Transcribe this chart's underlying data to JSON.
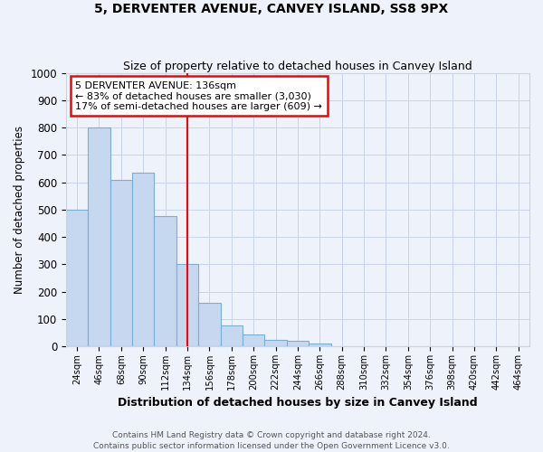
{
  "title": "5, DERVENTER AVENUE, CANVEY ISLAND, SS8 9PX",
  "subtitle": "Size of property relative to detached houses in Canvey Island",
  "xlabel": "Distribution of detached houses by size in Canvey Island",
  "ylabel": "Number of detached properties",
  "footer_line1": "Contains HM Land Registry data © Crown copyright and database right 2024.",
  "footer_line2": "Contains public sector information licensed under the Open Government Licence v3.0.",
  "bin_labels": [
    "24sqm",
    "46sqm",
    "68sqm",
    "90sqm",
    "112sqm",
    "134sqm",
    "156sqm",
    "178sqm",
    "200sqm",
    "222sqm",
    "244sqm",
    "266sqm",
    "288sqm",
    "310sqm",
    "332sqm",
    "354sqm",
    "376sqm",
    "398sqm",
    "420sqm",
    "442sqm",
    "464sqm"
  ],
  "bar_values": [
    500,
    800,
    610,
    635,
    475,
    300,
    160,
    75,
    45,
    25,
    20,
    10,
    0,
    0,
    0,
    0,
    0,
    0,
    0,
    0,
    0
  ],
  "bar_color": "#c5d8f0",
  "bar_edge_color": "#7aafd4",
  "vline_x_index": 5,
  "vline_color": "red",
  "annotation_title": "5 DERVENTER AVENUE: 136sqm",
  "annotation_line1": "← 83% of detached houses are smaller (3,030)",
  "annotation_line2": "17% of semi-detached houses are larger (609) →",
  "annotation_box_color": "white",
  "annotation_box_edge_color": "red",
  "ylim": [
    0,
    1000
  ],
  "yticks": [
    0,
    100,
    200,
    300,
    400,
    500,
    600,
    700,
    800,
    900,
    1000
  ],
  "background_color": "#eef2fb",
  "plot_bg_color": "#eef2fb",
  "grid_color": "#c8d4e8"
}
